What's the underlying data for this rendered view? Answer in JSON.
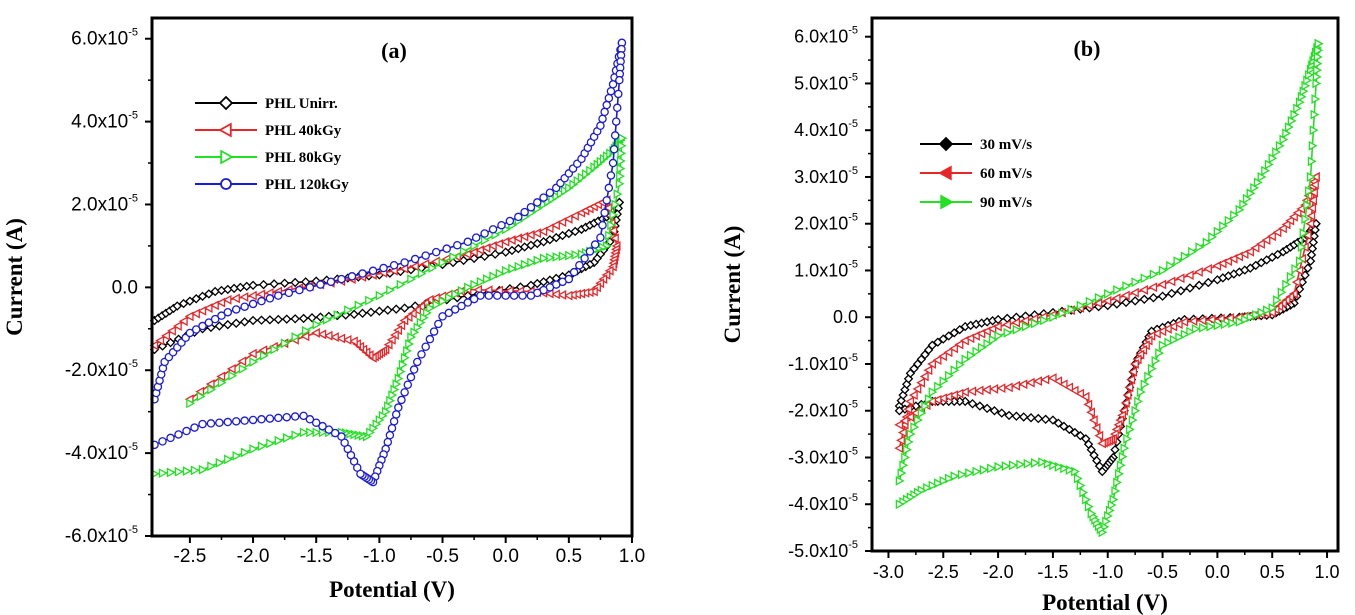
{
  "chart_data": [
    {
      "type": "line",
      "panel_label": "(a)",
      "xlabel": "Potential (V)",
      "ylabel": "Current (A)",
      "xlim": [
        -2.8,
        1.0
      ],
      "ylim": [
        -6e-05,
        6.5e-05
      ],
      "x_ticks": [
        "-2.5",
        "-2.0",
        "-1.5",
        "-1.0",
        "-0.5",
        "0.0",
        "0.5",
        "1.0"
      ],
      "x_tick_values": [
        -2.5,
        -2.0,
        -1.5,
        -1.0,
        -0.5,
        0.0,
        0.5,
        1.0
      ],
      "y_ticks": [
        {
          "mant": "-6.0x10",
          "exp": "-5",
          "value": -6e-05
        },
        {
          "mant": "-4.0x10",
          "exp": "-5",
          "value": -4e-05
        },
        {
          "mant": "-2.0x10",
          "exp": "-5",
          "value": -2e-05
        },
        {
          "mant": "0.0",
          "exp": "",
          "value": 0.0
        },
        {
          "mant": "2.0x10",
          "exp": "-5",
          "value": 2e-05
        },
        {
          "mant": "4.0x10",
          "exp": "-5",
          "value": 4e-05
        },
        {
          "mant": "6.0x10",
          "exp": "-5",
          "value": 6e-05
        }
      ],
      "legend_position": "top-left",
      "grid": false,
      "series": [
        {
          "name": "PHL Unirr.",
          "color": "#000000",
          "marker": "diamond",
          "forward": [
            [
              -2.78,
              -8e-06
            ],
            [
              -2.6,
              -4.5e-06
            ],
            [
              -2.3,
              -1e-06
            ],
            [
              -2.0,
              5e-07
            ],
            [
              -1.5,
              1.5e-06
            ],
            [
              -1.0,
              3e-06
            ],
            [
              -0.5,
              5.5e-06
            ],
            [
              0.0,
              8.5e-06
            ],
            [
              0.3,
              1.1e-05
            ],
            [
              0.6,
              1.4e-05
            ],
            [
              0.8,
              1.7e-05
            ],
            [
              0.9,
              2.05e-05
            ]
          ],
          "reverse": [
            [
              0.9,
              2.05e-05
            ],
            [
              0.85,
              1.2e-05
            ],
            [
              0.7,
              6e-06
            ],
            [
              0.5,
              3e-06
            ],
            [
              0.2,
              5e-07
            ],
            [
              -0.3,
              -2e-06
            ],
            [
              -0.8,
              -5e-06
            ],
            [
              -1.2,
              -6.5e-06
            ],
            [
              -1.6,
              -7.5e-06
            ],
            [
              -2.0,
              -8e-06
            ],
            [
              -2.4,
              -1e-05
            ],
            [
              -2.78,
              -1.5e-05
            ]
          ]
        },
        {
          "name": "PHL 40kGy",
          "color": "#e8262a",
          "marker": "triangle-left",
          "forward": [
            [
              -2.78,
              -1.4e-05
            ],
            [
              -2.5,
              -7e-06
            ],
            [
              -2.2,
              -3e-06
            ],
            [
              -1.8,
              -1e-06
            ],
            [
              -1.3,
              1.5e-06
            ],
            [
              -0.8,
              4.5e-06
            ],
            [
              -0.3,
              8e-06
            ],
            [
              0.0,
              1.1e-05
            ],
            [
              0.3,
              1.35e-05
            ],
            [
              0.6,
              1.8e-05
            ],
            [
              0.8,
              2.1e-05
            ]
          ],
          "reverse": [
            [
              0.8,
              2.1e-05
            ],
            [
              0.88,
              1e-05
            ],
            [
              0.85,
              5e-06
            ],
            [
              0.7,
              -1e-06
            ],
            [
              0.5,
              -2e-06
            ],
            [
              0.2,
              -1e-06
            ],
            [
              -0.3,
              -5e-07
            ],
            [
              -0.6,
              -3e-06
            ],
            [
              -0.8,
              -8e-06
            ],
            [
              -0.95,
              -1.5e-05
            ],
            [
              -1.05,
              -1.7e-05
            ],
            [
              -1.2,
              -1.3e-05
            ],
            [
              -1.5,
              -1.1e-05
            ],
            [
              -2.0,
              -1.6e-05
            ],
            [
              -2.5,
              -2.7e-05
            ]
          ]
        },
        {
          "name": "PHL 80kGy",
          "color": "#22e022",
          "marker": "triangle-right",
          "forward": [
            [
              -2.5,
              -2.8e-05
            ],
            [
              -2.0,
              -1.8e-05
            ],
            [
              -1.5,
              -9e-06
            ],
            [
              -1.0,
              -2e-06
            ],
            [
              -0.5,
              6e-06
            ],
            [
              0.0,
              1.4e-05
            ],
            [
              0.3,
              2e-05
            ],
            [
              0.5,
              2.4e-05
            ],
            [
              0.7,
              2.9e-05
            ],
            [
              0.85,
              3.3e-05
            ],
            [
              0.92,
              3.6e-05
            ]
          ],
          "reverse": [
            [
              0.92,
              3.6e-05
            ],
            [
              0.9,
              2.5e-05
            ],
            [
              0.8,
              1e-05
            ],
            [
              0.6,
              8e-06
            ],
            [
              0.3,
              7e-06
            ],
            [
              0.0,
              4e-06
            ],
            [
              -0.3,
              0.0
            ],
            [
              -0.6,
              -5e-06
            ],
            [
              -0.75,
              -1.2e-05
            ],
            [
              -0.85,
              -2.2e-05
            ],
            [
              -0.95,
              -3e-05
            ],
            [
              -1.1,
              -3.6e-05
            ],
            [
              -1.3,
              -3.5e-05
            ],
            [
              -1.6,
              -3.5e-05
            ],
            [
              -2.0,
              -3.9e-05
            ],
            [
              -2.4,
              -4.4e-05
            ],
            [
              -2.78,
              -4.5e-05
            ]
          ]
        },
        {
          "name": "PHL 120kGy",
          "color": "#1a1adc",
          "marker": "circle",
          "forward": [
            [
              -2.78,
              -2.7e-05
            ],
            [
              -2.7,
              -1.8e-05
            ],
            [
              -2.5,
              -1.1e-05
            ],
            [
              -2.2,
              -6e-06
            ],
            [
              -1.8,
              -2e-06
            ],
            [
              -1.3,
              2e-06
            ],
            [
              -0.8,
              6e-06
            ],
            [
              -0.3,
              1.1e-05
            ],
            [
              0.1,
              1.7e-05
            ],
            [
              0.4,
              2.4e-05
            ],
            [
              0.6,
              3.1e-05
            ],
            [
              0.75,
              3.9e-05
            ],
            [
              0.85,
              4.9e-05
            ],
            [
              0.92,
              5.9e-05
            ]
          ],
          "reverse": [
            [
              0.92,
              5.9e-05
            ],
            [
              0.9,
              5e-05
            ],
            [
              0.85,
              3e-05
            ],
            [
              0.75,
              1.2e-05
            ],
            [
              0.5,
              2e-06
            ],
            [
              0.2,
              -2e-06
            ],
            [
              -0.2,
              -2e-06
            ],
            [
              -0.5,
              -7e-06
            ],
            [
              -0.7,
              -1.8e-05
            ],
            [
              -0.85,
              -2.9e-05
            ],
            [
              -0.95,
              -3.9e-05
            ],
            [
              -1.05,
              -4.7e-05
            ],
            [
              -1.15,
              -4.5e-05
            ],
            [
              -1.3,
              -3.6e-05
            ],
            [
              -1.6,
              -3.1e-05
            ],
            [
              -2.0,
              -3.2e-05
            ],
            [
              -2.4,
              -3.3e-05
            ],
            [
              -2.78,
              -3.8e-05
            ]
          ]
        }
      ]
    },
    {
      "type": "line",
      "panel_label": "(b)",
      "xlabel": "Potential (V)",
      "ylabel": "Current (A)",
      "xlim": [
        -3.15,
        1.1
      ],
      "ylim": [
        -5e-05,
        6.4e-05
      ],
      "x_ticks": [
        "-3.0",
        "-2.5",
        "-2.0",
        "-1.5",
        "-1.0",
        "-0.5",
        "0.0",
        "0.5",
        "1.0"
      ],
      "x_tick_values": [
        -3.0,
        -2.5,
        -2.0,
        -1.5,
        -1.0,
        -0.5,
        0.0,
        0.5,
        1.0
      ],
      "y_ticks": [
        {
          "mant": "-5.0x10",
          "exp": "-5",
          "value": -5e-05
        },
        {
          "mant": "-4.0x10",
          "exp": "-5",
          "value": -4e-05
        },
        {
          "mant": "-3.0x10",
          "exp": "-5",
          "value": -3e-05
        },
        {
          "mant": "-2.0x10",
          "exp": "-5",
          "value": -2e-05
        },
        {
          "mant": "-1.0x10",
          "exp": "-5",
          "value": -1e-05
        },
        {
          "mant": "0.0",
          "exp": "",
          "value": 0.0
        },
        {
          "mant": "1.0x10",
          "exp": "-5",
          "value": 1e-05
        },
        {
          "mant": "2.0x10",
          "exp": "-5",
          "value": 2e-05
        },
        {
          "mant": "3.0x10",
          "exp": "-5",
          "value": 3e-05
        },
        {
          "mant": "4.0x10",
          "exp": "-5",
          "value": 4e-05
        },
        {
          "mant": "5.0x10",
          "exp": "-5",
          "value": 5e-05
        },
        {
          "mant": "6.0x10",
          "exp": "-5",
          "value": 6e-05
        }
      ],
      "legend_position": "left",
      "grid": false,
      "series": [
        {
          "name": "30 mV/s",
          "color": "#000000",
          "marker": "diamond",
          "forward": [
            [
              -2.9,
              -1.9e-05
            ],
            [
              -2.8,
              -1.2e-05
            ],
            [
              -2.6,
              -6e-06
            ],
            [
              -2.3,
              -2e-06
            ],
            [
              -2.0,
              -5e-07
            ],
            [
              -1.5,
              1e-06
            ],
            [
              -1.0,
              2.5e-06
            ],
            [
              -0.5,
              4.5e-06
            ],
            [
              0.0,
              8e-06
            ],
            [
              0.3,
              1.05e-05
            ],
            [
              0.6,
              1.4e-05
            ],
            [
              0.8,
              1.7e-05
            ],
            [
              0.9,
              2e-05
            ]
          ],
          "reverse": [
            [
              0.9,
              2e-05
            ],
            [
              0.85,
              1.2e-05
            ],
            [
              0.7,
              3e-06
            ],
            [
              0.5,
              5e-07
            ],
            [
              0.2,
              0.0
            ],
            [
              -0.3,
              -5e-07
            ],
            [
              -0.6,
              -3e-06
            ],
            [
              -0.75,
              -1e-05
            ],
            [
              -0.85,
              -2e-05
            ],
            [
              -0.95,
              -3e-05
            ],
            [
              -1.05,
              -3.3e-05
            ],
            [
              -1.2,
              -2.6e-05
            ],
            [
              -1.5,
              -2.2e-05
            ],
            [
              -1.9,
              -2.1e-05
            ],
            [
              -2.3,
              -1.8e-05
            ],
            [
              -2.6,
              -1.8e-05
            ],
            [
              -2.9,
              -2e-05
            ]
          ]
        },
        {
          "name": "60 mV/s",
          "color": "#e8262a",
          "marker": "triangle-left",
          "forward": [
            [
              -2.9,
              -2.8e-05
            ],
            [
              -2.8,
              -1.8e-05
            ],
            [
              -2.6,
              -1e-05
            ],
            [
              -2.3,
              -5e-06
            ],
            [
              -2.0,
              -2e-06
            ],
            [
              -1.5,
              5e-07
            ],
            [
              -1.0,
              3.5e-06
            ],
            [
              -0.5,
              7e-06
            ],
            [
              0.0,
              1.1e-05
            ],
            [
              0.3,
              1.4e-05
            ],
            [
              0.6,
              1.9e-05
            ],
            [
              0.8,
              2.4e-05
            ],
            [
              0.9,
              3e-05
            ]
          ],
          "reverse": [
            [
              0.9,
              3e-05
            ],
            [
              0.85,
              2e-05
            ],
            [
              0.7,
              5e-06
            ],
            [
              0.5,
              1e-06
            ],
            [
              0.2,
              0.0
            ],
            [
              -0.3,
              -1e-06
            ],
            [
              -0.6,
              -4e-06
            ],
            [
              -0.75,
              -1e-05
            ],
            [
              -0.85,
              -2e-05
            ],
            [
              -0.95,
              -2.6e-05
            ],
            [
              -1.05,
              -2.7e-05
            ],
            [
              -1.2,
              -1.7e-05
            ],
            [
              -1.5,
              -1.3e-05
            ],
            [
              -1.9,
              -1.5e-05
            ],
            [
              -2.3,
              -1.6e-05
            ],
            [
              -2.6,
              -1.8e-05
            ],
            [
              -2.9,
              -2.3e-05
            ]
          ]
        },
        {
          "name": "90 mV/s",
          "color": "#22e022",
          "marker": "triangle-right",
          "forward": [
            [
              -2.9,
              -3.5e-05
            ],
            [
              -2.8,
              -2.5e-05
            ],
            [
              -2.6,
              -1.6e-05
            ],
            [
              -2.3,
              -9e-06
            ],
            [
              -2.0,
              -4e-06
            ],
            [
              -1.5,
              0.0
            ],
            [
              -1.0,
              5e-06
            ],
            [
              -0.5,
              1e-05
            ],
            [
              -0.1,
              1.6e-05
            ],
            [
              0.2,
              2.3e-05
            ],
            [
              0.4,
              3e-05
            ],
            [
              0.6,
              3.8e-05
            ],
            [
              0.75,
              4.6e-05
            ],
            [
              0.85,
              5.3e-05
            ],
            [
              0.92,
              5.85e-05
            ]
          ],
          "reverse": [
            [
              0.92,
              5.85e-05
            ],
            [
              0.9,
              5e-05
            ],
            [
              0.85,
              3e-05
            ],
            [
              0.75,
              1.2e-05
            ],
            [
              0.5,
              2e-06
            ],
            [
              0.2,
              -1e-06
            ],
            [
              -0.2,
              -2.5e-06
            ],
            [
              -0.5,
              -6e-06
            ],
            [
              -0.7,
              -1.6e-05
            ],
            [
              -0.85,
              -2.8e-05
            ],
            [
              -0.95,
              -3.9e-05
            ],
            [
              -1.05,
              -4.6e-05
            ],
            [
              -1.15,
              -4.2e-05
            ],
            [
              -1.3,
              -3.3e-05
            ],
            [
              -1.6,
              -3.1e-05
            ],
            [
              -2.0,
              -3.2e-05
            ],
            [
              -2.4,
              -3.4e-05
            ],
            [
              -2.7,
              -3.7e-05
            ],
            [
              -2.9,
              -4e-05
            ]
          ]
        }
      ]
    }
  ]
}
